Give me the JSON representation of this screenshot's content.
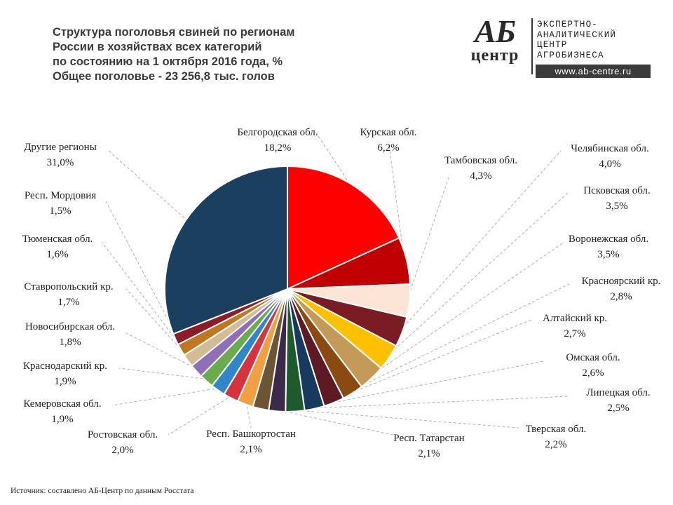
{
  "header": {
    "title_lines": [
      "Структура поголовья свиней по регионам",
      "России в хозяйствах всех категорий",
      "по состоянию на 1 октября 2016 года, %",
      "Общее поголовье - 23 256,8 тыс. голов"
    ]
  },
  "logo": {
    "mark_top": "АБ",
    "mark_bottom": "центр",
    "text_lines": [
      "ЭКСПЕРТНО-",
      "АНАЛИТИЧЕСКИЙ",
      "ЦЕНТР",
      "АГРОБИЗНЕСА"
    ],
    "url": "www.ab-centre.ru"
  },
  "chart_data": {
    "type": "pie",
    "title": "Структура поголовья свиней по регионам России в хозяйствах всех категорий по состоянию на 1 октября 2016 года, %",
    "total": "Общее поголовье - 23 256,8 тыс. голов",
    "slices": [
      {
        "name": "Белгородская обл.",
        "label": "18,2%",
        "value": 18.2,
        "color": "#ff0000"
      },
      {
        "name": "Курская обл.",
        "label": "6,2%",
        "value": 6.2,
        "color": "#c00000"
      },
      {
        "name": "Тамбовская обл.",
        "label": "4,3%",
        "value": 4.3,
        "color": "#fce4d6"
      },
      {
        "name": "Челябинская обл.",
        "label": "4,0%",
        "value": 4.0,
        "color": "#7b1c25"
      },
      {
        "name": "Псковская обл.",
        "label": "3,5%",
        "value": 3.5,
        "color": "#ffc000"
      },
      {
        "name": "Воронежская обл.",
        "label": "3,5%",
        "value": 3.5,
        "color": "#c49a58"
      },
      {
        "name": "Красноярский кр.",
        "label": "2,8%",
        "value": 2.8,
        "color": "#8b4a0f"
      },
      {
        "name": "Алтайский кр.",
        "label": "2,7%",
        "value": 2.7,
        "color": "#5e1a24"
      },
      {
        "name": "Омская обл.",
        "label": "2,6%",
        "value": 2.6,
        "color": "#173a5e"
      },
      {
        "name": "Липецкая обл.",
        "label": "2,5%",
        "value": 2.5,
        "color": "#1e5b2c"
      },
      {
        "name": "Тверская обл.",
        "label": "2,2%",
        "value": 2.2,
        "color": "#3b2a4a"
      },
      {
        "name": "Респ. Татарстан",
        "label": "2,1%",
        "value": 2.1,
        "color": "#6b5535"
      },
      {
        "name": "Респ. Башкортостан",
        "label": "2,1%",
        "value": 2.1,
        "color": "#f0a040"
      },
      {
        "name": "Ростовская обл.",
        "label": "2,0%",
        "value": 2.0,
        "color": "#d8323f"
      },
      {
        "name": "Кемеровская обл.",
        "label": "1,9%",
        "value": 1.9,
        "color": "#2f86c8"
      },
      {
        "name": "Краснодарский кр.",
        "label": "1,9%",
        "value": 1.9,
        "color": "#6aab4c"
      },
      {
        "name": "Новосибирская обл.",
        "label": "1,8%",
        "value": 1.8,
        "color": "#8e6fb8"
      },
      {
        "name": "Ставропольский кр.",
        "label": "1,7%",
        "value": 1.7,
        "color": "#d2bc94"
      },
      {
        "name": "Тюменская обл.",
        "label": "1,6%",
        "value": 1.6,
        "color": "#c0781e"
      },
      {
        "name": "Респ. Мордовия",
        "label": "1,5%",
        "value": 1.5,
        "color": "#8c1c2a"
      },
      {
        "name": "Другие регионы",
        "label": "31,0%",
        "value": 31.0,
        "color": "#1b3f5f"
      }
    ]
  },
  "footer": {
    "source": "Источник: составлено АБ-Центр по данным Росстата"
  }
}
